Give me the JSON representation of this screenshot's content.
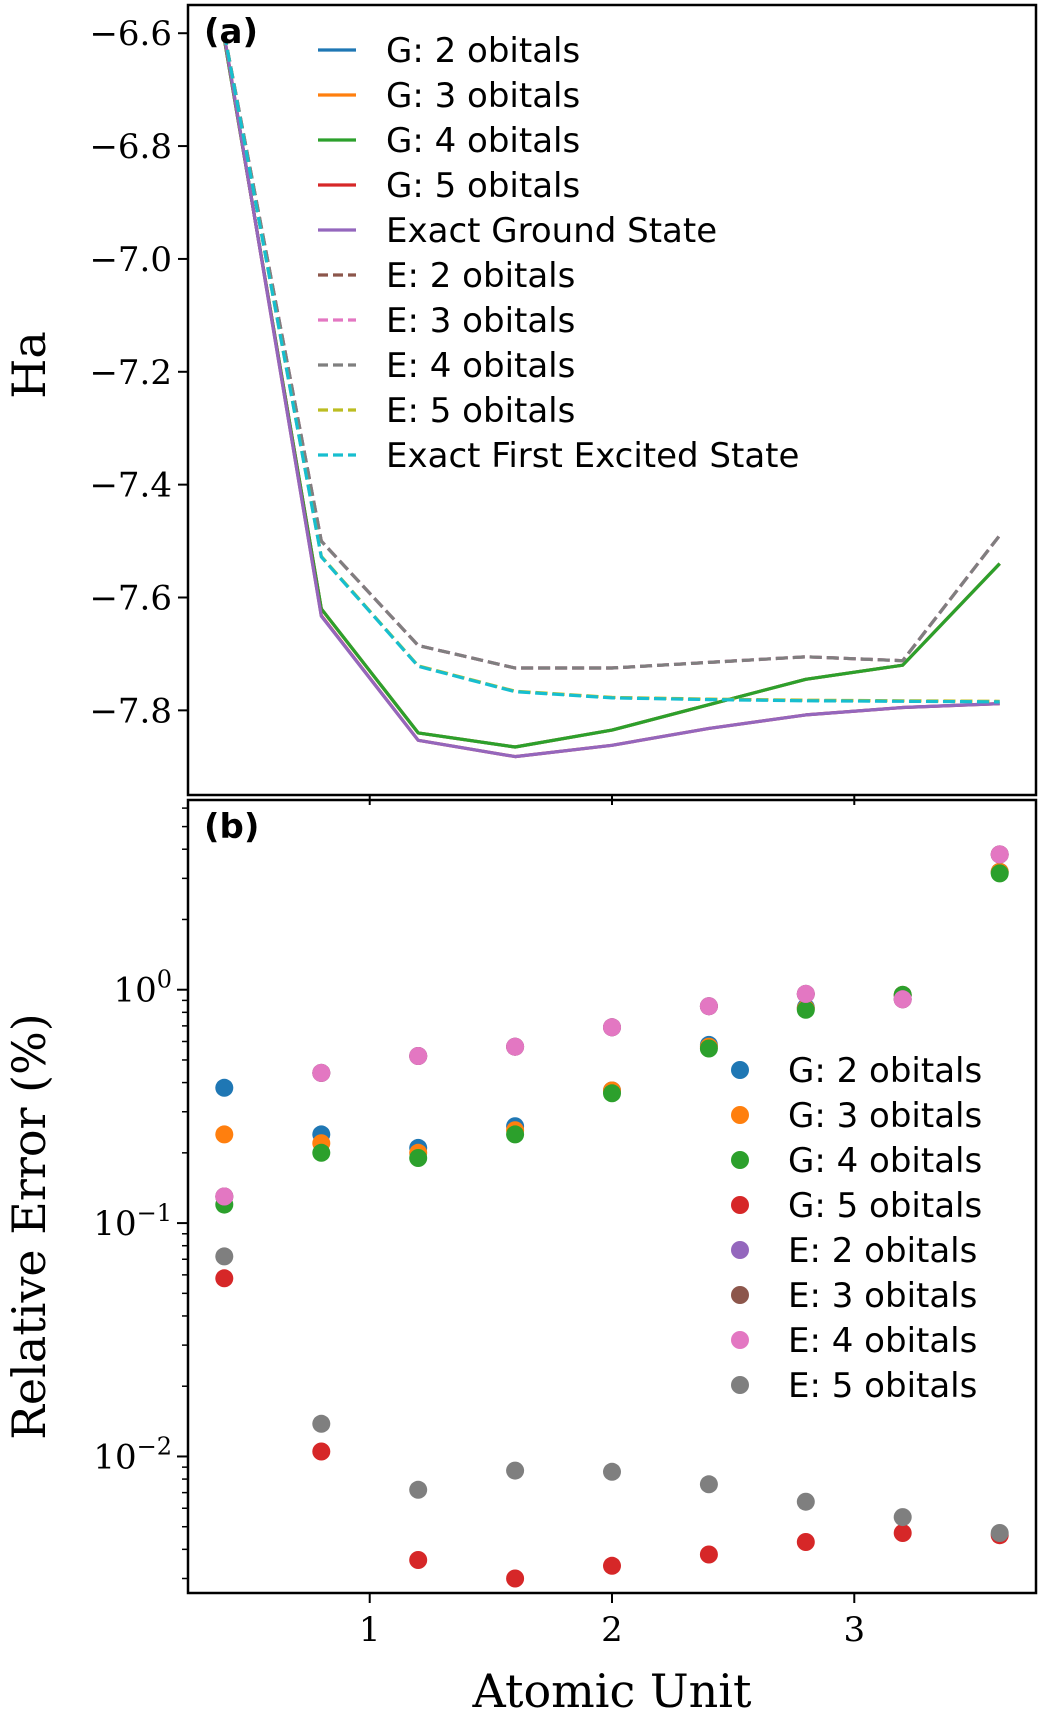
{
  "chart_data": [
    {
      "type": "line",
      "panel_label": "(a)",
      "title": "",
      "xlabel": "",
      "ylabel": "Ha",
      "xlim": [
        0.25,
        3.75
      ],
      "ylim": [
        -7.95,
        -6.55
      ],
      "x_ticks": [
        1,
        2,
        3
      ],
      "x_tick_labels": [
        "",
        "",
        ""
      ],
      "y_ticks": [
        -6.6,
        -6.8,
        -7.0,
        -7.2,
        -7.4,
        -7.6,
        -7.8
      ],
      "y_tick_labels": [
        "−6.6",
        "−6.8",
        "−7.0",
        "−7.2",
        "−7.4",
        "−7.6",
        "−7.8"
      ],
      "x": [
        0.4,
        0.8,
        1.2,
        1.6,
        2.0,
        2.4,
        2.8,
        3.2,
        3.6
      ],
      "legend_position": "top-right",
      "series": [
        {
          "name": "G: 2 obitals",
          "color": "#1f77b4",
          "dash": "solid",
          "values": [
            -6.61,
            -7.62,
            -7.84,
            -7.865,
            -7.835,
            -7.79,
            -7.745,
            -7.72,
            -7.54
          ]
        },
        {
          "name": "G: 3 obitals",
          "color": "#ff7f0e",
          "dash": "solid",
          "values": [
            -6.61,
            -7.62,
            -7.84,
            -7.865,
            -7.835,
            -7.79,
            -7.745,
            -7.72,
            -7.54
          ]
        },
        {
          "name": "G: 4 obitals",
          "color": "#2ca02c",
          "dash": "solid",
          "values": [
            -6.61,
            -7.62,
            -7.84,
            -7.865,
            -7.835,
            -7.79,
            -7.745,
            -7.72,
            -7.54
          ]
        },
        {
          "name": "G: 5 obitals",
          "color": "#d62728",
          "dash": "solid",
          "values": [
            -6.605,
            -7.632,
            -7.853,
            -7.882,
            -7.862,
            -7.832,
            -7.808,
            -7.795,
            -7.788
          ]
        },
        {
          "name": "Exact Ground State",
          "color": "#9467bd",
          "dash": "solid",
          "values": [
            -6.605,
            -7.633,
            -7.853,
            -7.882,
            -7.862,
            -7.832,
            -7.808,
            -7.795,
            -7.788
          ]
        },
        {
          "name": "E: 2 obitals",
          "color": "#8c564b",
          "dash": "dashed",
          "values": [
            -6.6,
            -7.5,
            -7.685,
            -7.725,
            -7.725,
            -7.715,
            -7.705,
            -7.712,
            -7.49
          ]
        },
        {
          "name": "E: 3 obitals",
          "color": "#e377c2",
          "dash": "dashed",
          "values": [
            -6.6,
            -7.5,
            -7.685,
            -7.725,
            -7.725,
            -7.715,
            -7.705,
            -7.712,
            -7.49
          ]
        },
        {
          "name": "E: 4 obitals",
          "color": "#7f7f7f",
          "dash": "dashed",
          "values": [
            -6.6,
            -7.5,
            -7.685,
            -7.725,
            -7.725,
            -7.715,
            -7.705,
            -7.712,
            -7.49
          ]
        },
        {
          "name": "E: 5 obitals",
          "color": "#bcbd22",
          "dash": "dashed",
          "values": [
            -6.6,
            -7.527,
            -7.721,
            -7.766,
            -7.777,
            -7.78,
            -7.782,
            -7.783,
            -7.784
          ]
        },
        {
          "name": "Exact First Excited State",
          "color": "#17becf",
          "dash": "dashed",
          "values": [
            -6.6,
            -7.528,
            -7.722,
            -7.767,
            -7.778,
            -7.781,
            -7.783,
            -7.784,
            -7.785
          ]
        }
      ]
    },
    {
      "type": "scatter",
      "panel_label": "(b)",
      "title": "",
      "xlabel": "Atomic Unit",
      "ylabel": "Relative Error (%)",
      "yscale": "log",
      "xlim": [
        0.25,
        3.75
      ],
      "ylim": [
        0.0026,
        6.5
      ],
      "x_ticks": [
        1,
        2,
        3
      ],
      "x_tick_labels": [
        "1",
        "2",
        "3"
      ],
      "y_ticks": [
        1,
        0.1,
        0.01
      ],
      "y_tick_labels": [
        {
          "base": "10",
          "exp": "0"
        },
        {
          "base": "10",
          "exp": "−1"
        },
        {
          "base": "10",
          "exp": "−2"
        }
      ],
      "x": [
        0.4,
        0.8,
        1.2,
        1.6,
        2.0,
        2.4,
        2.8,
        3.2,
        3.6
      ],
      "legend_position": "center-right",
      "series": [
        {
          "name": "G: 2 obitals",
          "color": "#1f77b4",
          "values": [
            0.38,
            0.24,
            0.21,
            0.26,
            0.37,
            0.58,
            0.84,
            0.95,
            3.2
          ]
        },
        {
          "name": "G: 3 obitals",
          "color": "#ff7f0e",
          "values": [
            0.24,
            0.22,
            0.2,
            0.25,
            0.37,
            0.57,
            0.83,
            0.95,
            3.2
          ]
        },
        {
          "name": "G: 4 obitals",
          "color": "#2ca02c",
          "values": [
            0.12,
            0.2,
            0.19,
            0.24,
            0.36,
            0.56,
            0.82,
            0.95,
            3.15
          ]
        },
        {
          "name": "G: 5 obitals",
          "color": "#d62728",
          "values": [
            0.058,
            0.0105,
            0.0036,
            0.003,
            0.0034,
            0.0038,
            0.0043,
            0.0047,
            0.0046
          ]
        },
        {
          "name": "E: 2 obitals",
          "color": "#9467bd",
          "values": [
            0.13,
            0.44,
            0.52,
            0.57,
            0.69,
            0.85,
            0.96,
            0.91,
            3.8
          ]
        },
        {
          "name": "E: 3 obitals",
          "color": "#8c564b",
          "values": [
            0.13,
            0.44,
            0.52,
            0.57,
            0.69,
            0.85,
            0.96,
            0.91,
            3.8
          ]
        },
        {
          "name": "E: 4 obitals",
          "color": "#e377c2",
          "values": [
            0.13,
            0.44,
            0.52,
            0.57,
            0.69,
            0.85,
            0.96,
            0.91,
            3.8
          ]
        },
        {
          "name": "E: 5 obitals",
          "color": "#7f7f7f",
          "values": [
            0.072,
            0.0138,
            0.0072,
            0.0087,
            0.0086,
            0.0076,
            0.0064,
            0.0055,
            0.0047
          ]
        }
      ]
    }
  ]
}
